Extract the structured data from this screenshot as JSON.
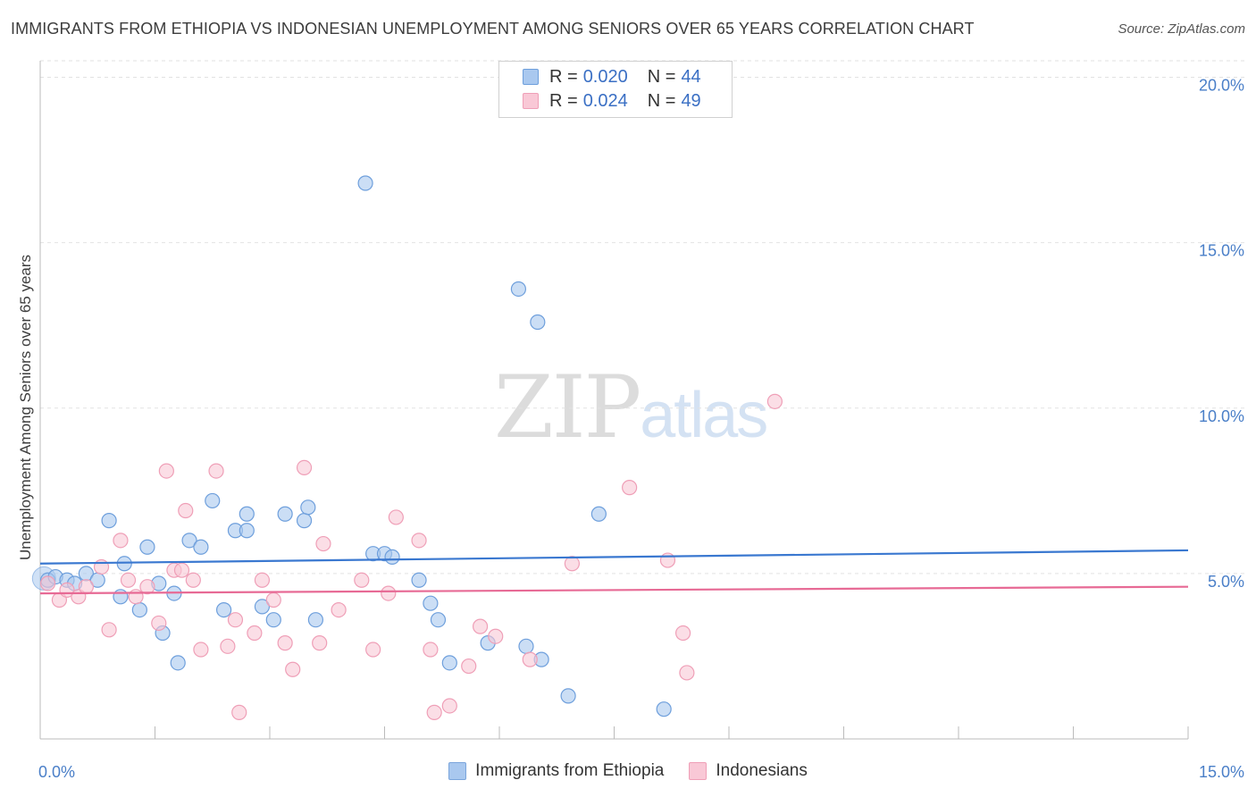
{
  "title": "IMMIGRANTS FROM ETHIOPIA VS INDONESIAN UNEMPLOYMENT AMONG SENIORS OVER 65 YEARS CORRELATION CHART",
  "source": "Source: ZipAtlas.com",
  "watermark": {
    "zip": "ZIP",
    "atlas": "atlas"
  },
  "legend": {
    "r_label": "R =",
    "n_label": "N =",
    "rows": [
      {
        "r": "0.020",
        "n": "44",
        "color": "#a9c8ef"
      },
      {
        "r": "0.024",
        "n": "49",
        "color": "#f5b5c8"
      }
    ]
  },
  "bottom_legend": [
    {
      "label": "Immigrants from Ethiopia",
      "color": "#a9c8ef",
      "border": "#7aa5dc"
    },
    {
      "label": "Indonesians",
      "color": "#f9c8d6",
      "border": "#ef9fb7"
    }
  ],
  "chart_data": {
    "type": "scatter",
    "title": "IMMIGRANTS FROM ETHIOPIA VS INDONESIAN UNEMPLOYMENT AMONG SENIORS OVER 65 YEARS CORRELATION CHART",
    "xlabel": "",
    "ylabel": "Unemployment Among Seniors over 65 years",
    "xlim": [
      0,
      15
    ],
    "ylim": [
      0,
      20.5
    ],
    "x_tick_labels": [
      "0.0%",
      "15.0%"
    ],
    "y_ticks": [
      5,
      10,
      15,
      20
    ],
    "y_tick_labels": [
      "5.0%",
      "10.0%",
      "15.0%",
      "20.0%"
    ],
    "series": [
      {
        "name": "Immigrants from Ethiopia",
        "color": "#a9c8ef",
        "stroke": "#6e9fdc",
        "line_color": "#3a78d0",
        "trend": [
          [
            0,
            5.3
          ],
          [
            15,
            5.7
          ]
        ],
        "points": [
          [
            0.1,
            4.8
          ],
          [
            0.2,
            4.9
          ],
          [
            0.35,
            4.8
          ],
          [
            0.45,
            4.7
          ],
          [
            0.6,
            5.0
          ],
          [
            0.75,
            4.8
          ],
          [
            0.9,
            6.6
          ],
          [
            1.05,
            4.3
          ],
          [
            1.1,
            5.3
          ],
          [
            1.3,
            3.9
          ],
          [
            1.4,
            5.8
          ],
          [
            1.55,
            4.7
          ],
          [
            1.6,
            3.2
          ],
          [
            1.75,
            4.4
          ],
          [
            1.8,
            2.3
          ],
          [
            1.95,
            6.0
          ],
          [
            2.1,
            5.8
          ],
          [
            2.25,
            7.2
          ],
          [
            2.4,
            3.9
          ],
          [
            2.55,
            6.3
          ],
          [
            2.7,
            6.3
          ],
          [
            2.7,
            6.8
          ],
          [
            2.9,
            4.0
          ],
          [
            3.05,
            3.6
          ],
          [
            3.2,
            6.8
          ],
          [
            3.45,
            6.6
          ],
          [
            3.5,
            7.0
          ],
          [
            3.6,
            3.6
          ],
          [
            4.25,
            16.8
          ],
          [
            4.35,
            5.6
          ],
          [
            4.5,
            5.6
          ],
          [
            4.6,
            5.5
          ],
          [
            4.95,
            4.8
          ],
          [
            5.1,
            4.1
          ],
          [
            5.2,
            3.6
          ],
          [
            5.35,
            2.3
          ],
          [
            5.85,
            2.9
          ],
          [
            6.25,
            13.6
          ],
          [
            6.35,
            2.8
          ],
          [
            6.5,
            12.6
          ],
          [
            6.55,
            2.4
          ],
          [
            6.9,
            1.3
          ],
          [
            7.3,
            6.8
          ],
          [
            8.15,
            0.9
          ]
        ]
      },
      {
        "name": "Indonesians",
        "color": "#f9c8d6",
        "stroke": "#ef9fb7",
        "line_color": "#e76a95",
        "trend": [
          [
            0,
            4.4
          ],
          [
            15,
            4.6
          ]
        ],
        "points": [
          [
            0.1,
            4.7
          ],
          [
            0.25,
            4.2
          ],
          [
            0.35,
            4.5
          ],
          [
            0.5,
            4.3
          ],
          [
            0.6,
            4.6
          ],
          [
            0.8,
            5.2
          ],
          [
            0.9,
            3.3
          ],
          [
            1.05,
            6.0
          ],
          [
            1.15,
            4.8
          ],
          [
            1.25,
            4.3
          ],
          [
            1.4,
            4.6
          ],
          [
            1.55,
            3.5
          ],
          [
            1.65,
            8.1
          ],
          [
            1.75,
            5.1
          ],
          [
            1.85,
            5.1
          ],
          [
            1.9,
            6.9
          ],
          [
            2.0,
            4.8
          ],
          [
            2.1,
            2.7
          ],
          [
            2.3,
            8.1
          ],
          [
            2.45,
            2.8
          ],
          [
            2.55,
            3.6
          ],
          [
            2.6,
            0.8
          ],
          [
            2.8,
            3.2
          ],
          [
            2.9,
            4.8
          ],
          [
            3.05,
            4.2
          ],
          [
            3.2,
            2.9
          ],
          [
            3.3,
            2.1
          ],
          [
            3.45,
            8.2
          ],
          [
            3.65,
            2.9
          ],
          [
            3.7,
            5.9
          ],
          [
            3.9,
            3.9
          ],
          [
            4.2,
            4.8
          ],
          [
            4.35,
            2.7
          ],
          [
            4.55,
            4.4
          ],
          [
            4.65,
            6.7
          ],
          [
            4.95,
            6.0
          ],
          [
            5.1,
            2.7
          ],
          [
            5.15,
            0.8
          ],
          [
            5.35,
            1.0
          ],
          [
            5.6,
            2.2
          ],
          [
            5.75,
            3.4
          ],
          [
            5.95,
            3.1
          ],
          [
            6.4,
            2.4
          ],
          [
            6.95,
            5.3
          ],
          [
            7.7,
            7.6
          ],
          [
            8.2,
            5.4
          ],
          [
            8.4,
            3.2
          ],
          [
            8.45,
            2.0
          ],
          [
            9.6,
            10.2
          ]
        ]
      }
    ]
  }
}
